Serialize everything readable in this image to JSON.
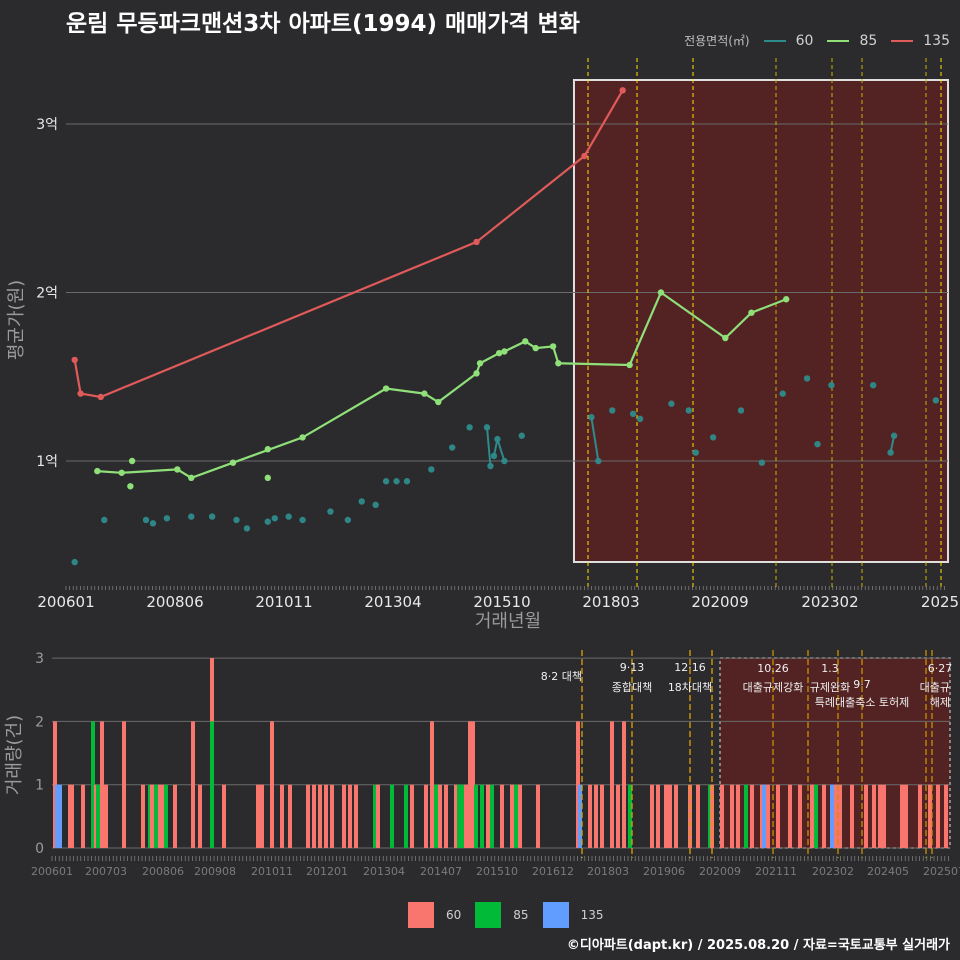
{
  "title": "운림 무등파크맨션3차 아파트(1994) 매매가격 변화",
  "footer": "©디아파트(dapt.kr) / 2025.08.20 / 자료=국토교통부 실거래가",
  "legend_top": {
    "title": "전용면적(㎡)",
    "items": [
      {
        "label": "60",
        "color": "#2e8b8b"
      },
      {
        "label": "85",
        "color": "#90e07a"
      },
      {
        "label": "135",
        "color": "#e05a5a"
      }
    ]
  },
  "legend_bottom": [
    {
      "label": "60",
      "color": "#f8766d"
    },
    {
      "label": "85",
      "color": "#00ba38"
    },
    {
      "label": "135",
      "color": "#619cff"
    }
  ],
  "chart_data": [
    {
      "type": "line",
      "xlabel": "거래년월",
      "ylabel": "평균가(원)",
      "x_ticks": [
        "200601",
        "200806",
        "201011",
        "201304",
        "201510",
        "201803",
        "202009",
        "202302",
        "2025"
      ],
      "y_ticks": [
        "1억",
        "2억",
        "3억"
      ],
      "ylim": [
        0.35,
        3.3
      ],
      "grid": true,
      "highlight_region": {
        "from": "2020.6",
        "to": "2025.8"
      },
      "policy_dates": [
        "2017.6",
        "2018.7",
        "2019.12",
        "2020.8",
        "2021.10",
        "2022.11",
        "2023.7",
        "2024.12",
        "2025.6"
      ],
      "series": [
        {
          "name": "135",
          "color": "#e05a5a",
          "points": [
            {
              "x": 2006.25,
              "y": 1.6
            },
            {
              "x": 2006.42,
              "y": 1.4
            },
            {
              "x": 2007.0,
              "y": 1.38
            },
            {
              "x": 2017.8,
              "y": 2.3
            },
            {
              "x": 2020.9,
              "y": 2.81
            },
            {
              "x": 2022.0,
              "y": 3.2
            }
          ]
        },
        {
          "name": "85",
          "color": "#90e07a",
          "points": [
            {
              "x": 2006.9,
              "y": 0.94
            },
            {
              "x": 2007.6,
              "y": 0.93
            },
            {
              "x": 2009.2,
              "y": 0.95
            },
            {
              "x": 2009.6,
              "y": 0.9
            },
            {
              "x": 2010.8,
              "y": 0.99
            },
            {
              "x": 2012.8,
              "y": 1.14
            },
            {
              "x": 2015.2,
              "y": 1.43
            },
            {
              "x": 2016.3,
              "y": 1.4
            },
            {
              "x": 2016.7,
              "y": 1.35
            },
            {
              "x": 2017.8,
              "y": 1.52
            },
            {
              "x": 2017.9,
              "y": 1.58
            },
            {
              "x": 2018.45,
              "y": 1.64
            },
            {
              "x": 2018.6,
              "y": 1.65
            },
            {
              "x": 2019.2,
              "y": 1.71
            },
            {
              "x": 2019.5,
              "y": 1.67
            },
            {
              "x": 2020.0,
              "y": 1.68
            },
            {
              "x": 2020.15,
              "y": 1.58
            },
            {
              "x": 2022.2,
              "y": 1.57
            },
            {
              "x": 2023.1,
              "y": 2.0
            },
            {
              "x": 2024.95,
              "y": 1.73
            },
            {
              "x": 2025.7,
              "y": 1.88
            },
            {
              "x": 2026.7,
              "y": 1.96
            }
          ],
          "extra_points": [
            {
              "x": 2007.9,
              "y": 1.0
            },
            {
              "x": 2007.85,
              "y": 0.85
            },
            {
              "x": 2011.8,
              "y": 1.07
            },
            {
              "x": 2011.8,
              "y": 0.9
            }
          ]
        },
        {
          "name": "60",
          "color": "#2e8b8b",
          "scatter": [
            {
              "x": 2006.25,
              "y": 0.4
            },
            {
              "x": 2007.1,
              "y": 0.65
            },
            {
              "x": 2008.3,
              "y": 0.65
            },
            {
              "x": 2008.5,
              "y": 0.63
            },
            {
              "x": 2008.9,
              "y": 0.66
            },
            {
              "x": 2009.6,
              "y": 0.67
            },
            {
              "x": 2010.2,
              "y": 0.67
            },
            {
              "x": 2010.9,
              "y": 0.65
            },
            {
              "x": 2011.2,
              "y": 0.6
            },
            {
              "x": 2011.8,
              "y": 0.64
            },
            {
              "x": 2012.0,
              "y": 0.66
            },
            {
              "x": 2012.4,
              "y": 0.67
            },
            {
              "x": 2012.8,
              "y": 0.65
            },
            {
              "x": 2013.6,
              "y": 0.7
            },
            {
              "x": 2014.1,
              "y": 0.65
            },
            {
              "x": 2014.5,
              "y": 0.76
            },
            {
              "x": 2014.9,
              "y": 0.74
            },
            {
              "x": 2015.2,
              "y": 0.88
            },
            {
              "x": 2015.5,
              "y": 0.88
            },
            {
              "x": 2015.8,
              "y": 0.88
            },
            {
              "x": 2016.5,
              "y": 0.95
            },
            {
              "x": 2017.1,
              "y": 1.08
            },
            {
              "x": 2017.6,
              "y": 1.2
            },
            {
              "x": 2018.1,
              "y": 1.2
            },
            {
              "x": 2018.2,
              "y": 0.97
            },
            {
              "x": 2018.3,
              "y": 1.03
            },
            {
              "x": 2018.4,
              "y": 1.13
            },
            {
              "x": 2018.6,
              "y": 1.0
            },
            {
              "x": 2019.1,
              "y": 1.15
            },
            {
              "x": 2021.1,
              "y": 1.26
            },
            {
              "x": 2021.3,
              "y": 1.0
            },
            {
              "x": 2021.7,
              "y": 1.3
            },
            {
              "x": 2022.3,
              "y": 1.28
            },
            {
              "x": 2022.5,
              "y": 1.25
            },
            {
              "x": 2023.4,
              "y": 1.34
            },
            {
              "x": 2023.9,
              "y": 1.3
            },
            {
              "x": 2024.1,
              "y": 1.05
            },
            {
              "x": 2024.6,
              "y": 1.14
            },
            {
              "x": 2025.4,
              "y": 1.3
            },
            {
              "x": 2026.0,
              "y": 0.99
            },
            {
              "x": 2026.6,
              "y": 1.4
            },
            {
              "x": 2027.3,
              "y": 1.49
            },
            {
              "x": 2027.6,
              "y": 1.1
            },
            {
              "x": 2028.0,
              "y": 1.45
            },
            {
              "x": 2029.2,
              "y": 1.45
            },
            {
              "x": 2029.7,
              "y": 1.05
            },
            {
              "x": 2029.8,
              "y": 1.15
            },
            {
              "x": 2031.0,
              "y": 1.36
            }
          ]
        }
      ]
    },
    {
      "type": "bar",
      "xlabel": "",
      "ylabel": "거래량(건)",
      "x_ticks": [
        "200601",
        "200703",
        "200806",
        "200908",
        "201011",
        "201201",
        "201304",
        "201407",
        "201510",
        "201612",
        "201803",
        "201906",
        "202009",
        "202111",
        "202302",
        "202405",
        "202507"
      ],
      "y_ticks": [
        "0",
        "1",
        "2",
        "3"
      ],
      "ylim": [
        0,
        3
      ],
      "annotations": [
        {
          "date": "8·2 대책",
          "label": "8·2 대책"
        },
        {
          "date": "9·13",
          "label": "종합대책"
        },
        {
          "date": "12·16",
          "label": "18차대책"
        },
        {
          "date": "10.26",
          "label": "대출규제강화"
        },
        {
          "date": "1.3",
          "label": "규제완화"
        },
        {
          "date": "9·7",
          "label": "특례대출축소 토허제"
        },
        {
          "date": "6·27",
          "label": "대출규"
        }
      ],
      "series": [
        {
          "name": "60",
          "color": "#f8766d"
        },
        {
          "name": "85",
          "color": "#00ba38"
        },
        {
          "name": "135",
          "color": "#619cff"
        }
      ]
    }
  ]
}
